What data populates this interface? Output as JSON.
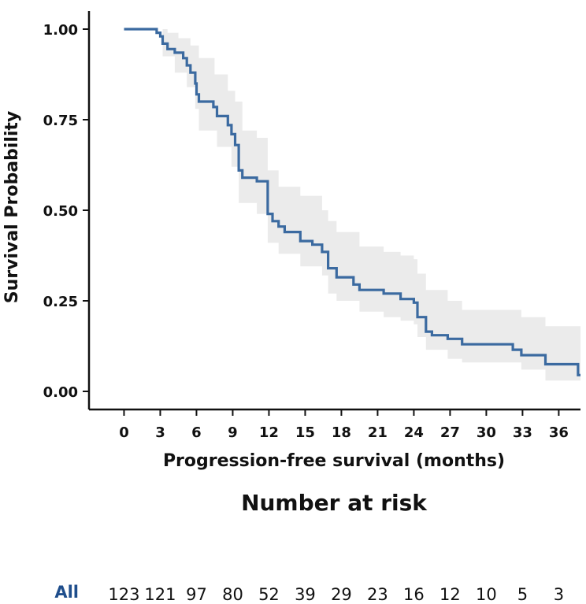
{
  "chart_data": {
    "type": "line",
    "subtype": "kaplan-meier",
    "xlabel": "Progression-free survival (months)",
    "ylabel": "Survival Probability",
    "xlim": [
      -2.9,
      37.8
    ],
    "ylim": [
      -0.05,
      1.05
    ],
    "xticks": [
      0,
      3,
      6,
      9,
      12,
      15,
      18,
      21,
      24,
      27,
      30,
      33,
      36
    ],
    "yticks": [
      0.0,
      0.25,
      0.5,
      0.75,
      1.0
    ],
    "ytick_labels": [
      "0.00",
      "0.25",
      "0.50",
      "0.75",
      "1.00"
    ],
    "colors": {
      "line": "#3b6aa0",
      "ci_band": "#ebebeb",
      "group_label": "#1f4e8c"
    },
    "series": [
      {
        "name": "All",
        "steps": [
          [
            0,
            1.0
          ],
          [
            2.7,
            0.99
          ],
          [
            3.0,
            0.98
          ],
          [
            3.2,
            0.96
          ],
          [
            3.6,
            0.945
          ],
          [
            4.2,
            0.935
          ],
          [
            4.9,
            0.92
          ],
          [
            5.2,
            0.9
          ],
          [
            5.5,
            0.88
          ],
          [
            5.9,
            0.85
          ],
          [
            6.0,
            0.82
          ],
          [
            6.2,
            0.8
          ],
          [
            7.4,
            0.785
          ],
          [
            7.7,
            0.76
          ],
          [
            8.6,
            0.735
          ],
          [
            8.9,
            0.71
          ],
          [
            9.2,
            0.68
          ],
          [
            9.5,
            0.61
          ],
          [
            9.8,
            0.59
          ],
          [
            11.0,
            0.58
          ],
          [
            11.9,
            0.49
          ],
          [
            12.3,
            0.47
          ],
          [
            12.8,
            0.455
          ],
          [
            13.3,
            0.44
          ],
          [
            14.6,
            0.415
          ],
          [
            15.6,
            0.405
          ],
          [
            16.4,
            0.385
          ],
          [
            16.9,
            0.34
          ],
          [
            17.6,
            0.315
          ],
          [
            19.0,
            0.295
          ],
          [
            19.5,
            0.28
          ],
          [
            21.5,
            0.27
          ],
          [
            22.9,
            0.255
          ],
          [
            24.0,
            0.245
          ],
          [
            24.3,
            0.205
          ],
          [
            25.0,
            0.165
          ],
          [
            25.5,
            0.155
          ],
          [
            26.8,
            0.145
          ],
          [
            28.0,
            0.13
          ],
          [
            32.2,
            0.115
          ],
          [
            32.9,
            0.1
          ],
          [
            34.9,
            0.075
          ],
          [
            37.6,
            0.045
          ]
        ],
        "x_end": 37.8,
        "ci_upper": [
          [
            0,
            1.0
          ],
          [
            3.2,
            1.0
          ],
          [
            3.6,
            0.99
          ],
          [
            4.5,
            0.975
          ],
          [
            5.5,
            0.955
          ],
          [
            6.2,
            0.92
          ],
          [
            7.5,
            0.875
          ],
          [
            8.6,
            0.83
          ],
          [
            9.2,
            0.8
          ],
          [
            9.8,
            0.72
          ],
          [
            11.0,
            0.7
          ],
          [
            11.9,
            0.61
          ],
          [
            12.8,
            0.565
          ],
          [
            14.6,
            0.54
          ],
          [
            16.4,
            0.5
          ],
          [
            16.9,
            0.47
          ],
          [
            17.6,
            0.44
          ],
          [
            19.5,
            0.4
          ],
          [
            21.5,
            0.385
          ],
          [
            22.9,
            0.375
          ],
          [
            24.0,
            0.365
          ],
          [
            24.3,
            0.325
          ],
          [
            25.0,
            0.28
          ],
          [
            26.8,
            0.25
          ],
          [
            28.0,
            0.225
          ],
          [
            32.9,
            0.205
          ],
          [
            34.9,
            0.18
          ],
          [
            37.8,
            0.18
          ]
        ],
        "ci_lower": [
          [
            0,
            1.0
          ],
          [
            2.7,
            1.0
          ],
          [
            3.2,
            0.925
          ],
          [
            4.2,
            0.88
          ],
          [
            5.2,
            0.84
          ],
          [
            5.9,
            0.78
          ],
          [
            6.2,
            0.72
          ],
          [
            7.7,
            0.675
          ],
          [
            8.9,
            0.62
          ],
          [
            9.5,
            0.52
          ],
          [
            11.0,
            0.49
          ],
          [
            11.9,
            0.41
          ],
          [
            12.8,
            0.38
          ],
          [
            14.6,
            0.345
          ],
          [
            16.4,
            0.32
          ],
          [
            16.9,
            0.27
          ],
          [
            17.6,
            0.25
          ],
          [
            19.5,
            0.22
          ],
          [
            21.5,
            0.205
          ],
          [
            22.9,
            0.195
          ],
          [
            24.0,
            0.185
          ],
          [
            24.3,
            0.15
          ],
          [
            25.0,
            0.115
          ],
          [
            26.8,
            0.09
          ],
          [
            28.0,
            0.08
          ],
          [
            32.9,
            0.06
          ],
          [
            34.9,
            0.03
          ],
          [
            37.8,
            0.015
          ]
        ]
      }
    ],
    "risk_table": {
      "title": "Number at risk",
      "group": "All",
      "times": [
        0,
        3,
        6,
        9,
        12,
        15,
        18,
        21,
        24,
        27,
        30,
        33,
        36
      ],
      "counts": [
        "123",
        "121",
        "97",
        "80",
        "52",
        "39",
        "29",
        "23",
        "16",
        "12",
        "10",
        "5",
        "3"
      ]
    }
  }
}
